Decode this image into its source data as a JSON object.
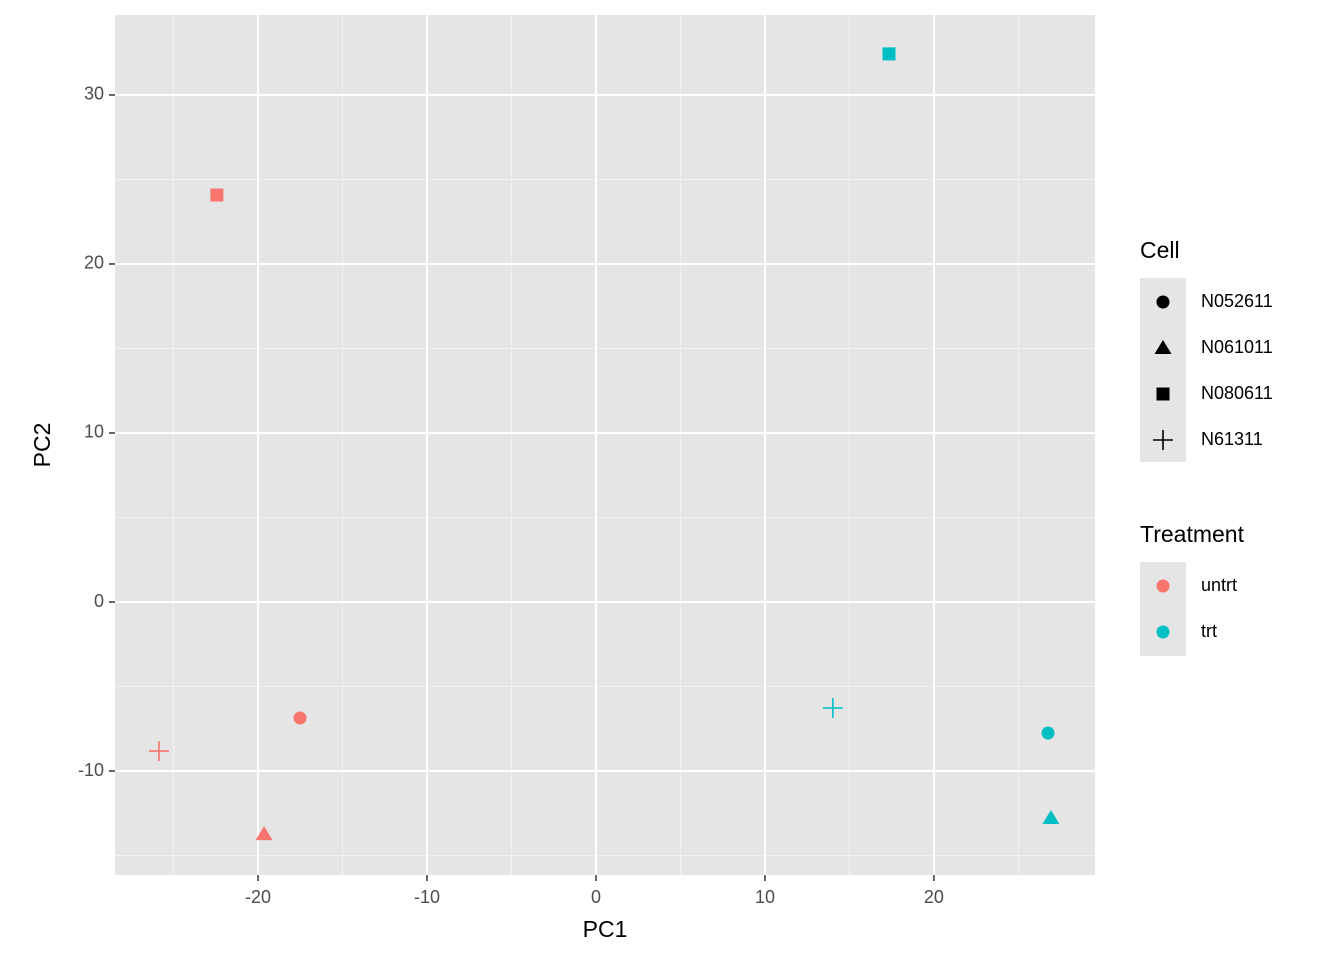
{
  "chart_data": {
    "type": "scatter",
    "x_label": "PC1",
    "y_label": "PC2",
    "xlim": [
      -28.46,
      29.53
    ],
    "ylim": [
      -16.15,
      34.73
    ],
    "xticks": [
      -20,
      -10,
      0,
      10,
      20
    ],
    "yticks": [
      -10,
      0,
      10,
      20,
      30
    ],
    "x_minor_grid": [
      -25,
      -15,
      -5,
      5,
      15,
      25
    ],
    "y_minor_grid": [
      -15,
      -5,
      5,
      15,
      25
    ],
    "grid": true,
    "cell_legend": {
      "title": "Cell",
      "labels": [
        "N052611",
        "N061011",
        "N080611",
        "N61311"
      ],
      "shapes": [
        "circle",
        "triangle",
        "square",
        "plus"
      ]
    },
    "treatment_legend_title": "Treatment",
    "series": [
      {
        "name": "untrt",
        "color": "#f8766d",
        "x": [
          -17.51,
          -19.64,
          -22.43,
          -25.86
        ],
        "values": [
          -6.86,
          -13.73,
          24.08,
          -8.82
        ]
      },
      {
        "name": "trt",
        "color": "#00bfc4",
        "x": [
          26.75,
          26.92,
          17.34,
          14.02
        ],
        "values": [
          -7.75,
          -12.78,
          32.43,
          -6.27
        ]
      }
    ]
  }
}
